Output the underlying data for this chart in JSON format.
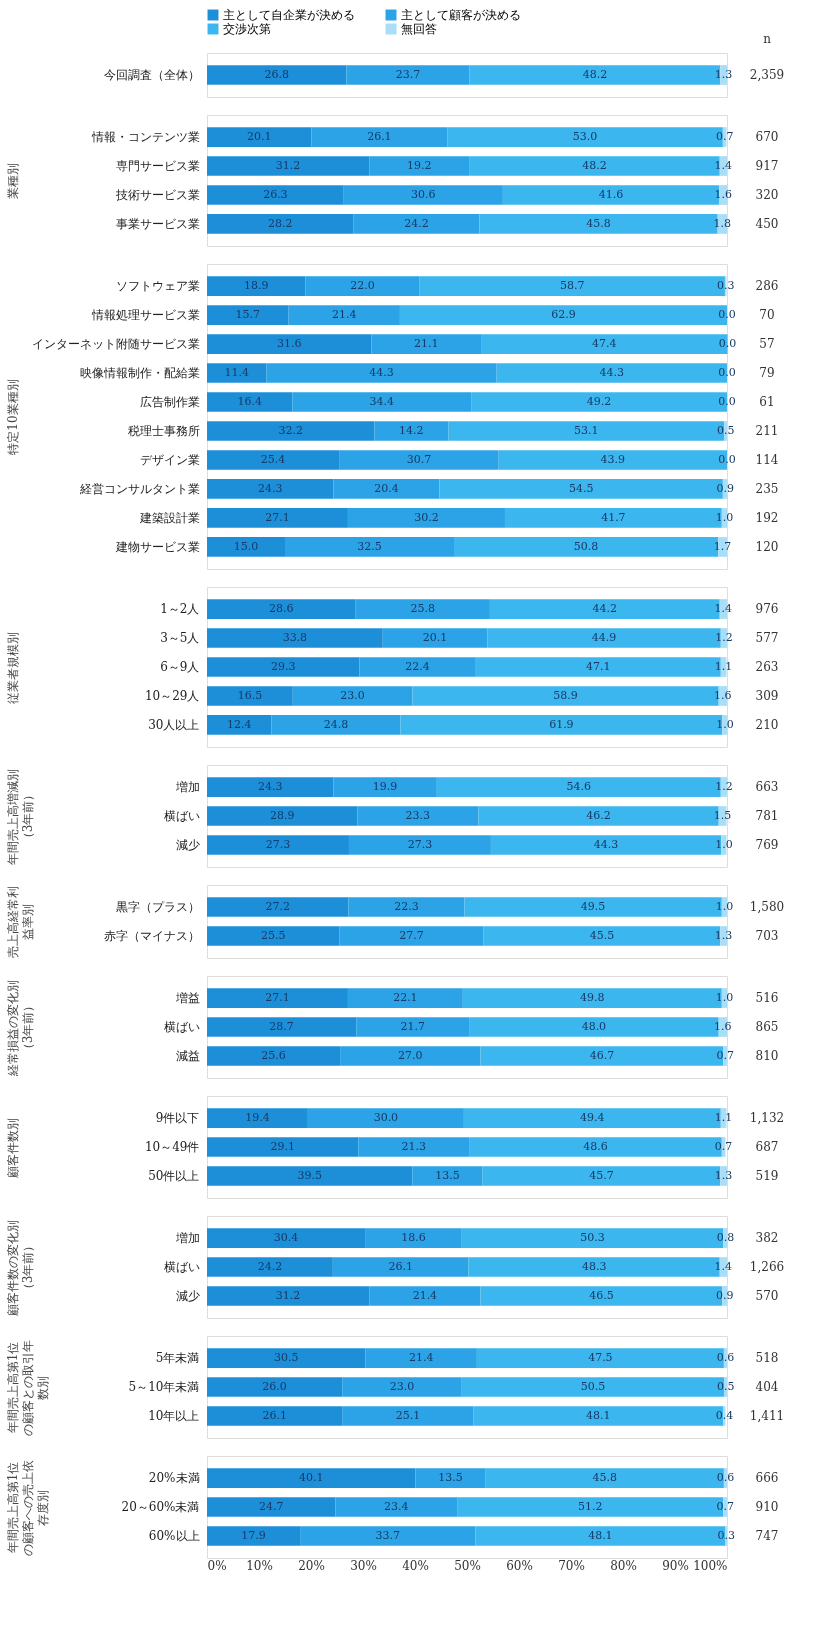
{
  "chart_data": [
    {
      "type": "bar",
      "orientation": "horizontal",
      "stacked": true,
      "legend": "top",
      "xlim": [
        0,
        100
      ],
      "tick_labels": "y",
      "categories": [
        "今回調査（全体）"
      ],
      "series": [
        {
          "name": "主として自企業が決める",
          "color": "#1d8fd9",
          "values": [
            26.8
          ],
          "value_labels": [
            "26.8"
          ]
        },
        {
          "name": "主として顧客が決める",
          "color": "#2ba3e6",
          "values": [
            23.7
          ],
          "value_labels": [
            "23.7"
          ]
        },
        {
          "name": "交渉次第",
          "color": "#3cb6ee",
          "values": [
            48.2
          ],
          "value_labels": [
            "48.2"
          ]
        },
        {
          "name": "無回答",
          "color": "#a8def7",
          "values": [
            1.3
          ],
          "value_labels": [
            "1.3"
          ]
        }
      ],
      "annotations": [
        "n",
        "2,359"
      ]
    },
    {
      "type": "bar",
      "orientation": "horizontal",
      "stacked": true,
      "ylabel": "業種別",
      "xlim": [
        0,
        100
      ],
      "tick_labels": "y",
      "categories": [
        "情報・コンテンツ業",
        "専門サービス業",
        "技術サービス業",
        "事業サービス業"
      ],
      "series": [
        {
          "color": "#1d8fd9",
          "values": [
            20.1,
            31.2,
            26.3,
            28.2
          ],
          "value_labels": [
            "20.1",
            "31.2",
            "26.3",
            "28.2"
          ]
        },
        {
          "color": "#2ba3e6",
          "values": [
            26.1,
            19.2,
            30.6,
            24.2
          ],
          "value_labels": [
            "26.1",
            "19.2",
            "30.6",
            "24.2"
          ]
        },
        {
          "color": "#3cb6ee",
          "values": [
            53.0,
            48.2,
            41.6,
            45.8
          ],
          "value_labels": [
            "53.0",
            "48.2",
            "41.6",
            "45.8"
          ]
        },
        {
          "color": "#a8def7",
          "values": [
            0.7,
            1.4,
            1.6,
            1.8
          ],
          "value_labels": [
            "0.7",
            "1.4",
            "1.6",
            "1.8"
          ]
        }
      ],
      "annotations": [
        "670",
        "917",
        "320",
        "450"
      ]
    },
    {
      "type": "bar",
      "orientation": "horizontal",
      "stacked": true,
      "ylabel": "特定10業種別",
      "xlim": [
        0,
        100
      ],
      "tick_labels": "y",
      "categories": [
        "ソフトウェア業",
        "情報処理サービス業",
        "インターネット附随サービス業",
        "映像情報制作・配給業",
        "広告制作業",
        "税理士事務所",
        "デザイン業",
        "経営コンサルタント業",
        "建築設計業",
        "建物サービス業"
      ],
      "series": [
        {
          "color": "#1d8fd9",
          "values": [
            18.9,
            15.7,
            31.6,
            11.4,
            16.4,
            32.2,
            25.4,
            24.3,
            27.1,
            15.0
          ],
          "value_labels": [
            "18.9",
            "15.7",
            "31.6",
            "11.4",
            "16.4",
            "32.2",
            "25.4",
            "24.3",
            "27.1",
            "15.0"
          ]
        },
        {
          "color": "#2ba3e6",
          "values": [
            22.0,
            21.4,
            21.1,
            44.3,
            34.4,
            14.2,
            30.7,
            20.4,
            30.2,
            32.5
          ],
          "value_labels": [
            "22.0",
            "21.4",
            "21.1",
            "44.3",
            "34.4",
            "14.2",
            "30.7",
            "20.4",
            "30.2",
            "32.5"
          ]
        },
        {
          "color": "#3cb6ee",
          "values": [
            58.7,
            62.9,
            47.4,
            44.3,
            49.2,
            53.1,
            43.9,
            54.5,
            41.7,
            50.8
          ],
          "value_labels": [
            "58.7",
            "62.9",
            "47.4",
            "44.3",
            "49.2",
            "53.1",
            "43.9",
            "54.5",
            "41.7",
            "50.8"
          ]
        },
        {
          "color": "#a8def7",
          "values": [
            0.3,
            0.0,
            0.0,
            0.0,
            0.0,
            0.5,
            0.0,
            0.9,
            1.0,
            1.7
          ],
          "value_labels": [
            "0.3",
            "0.0",
            "0.0",
            "0.0",
            "0.0",
            "0.5",
            "0.0",
            "0.9",
            "1.0",
            "1.7"
          ]
        }
      ],
      "annotations": [
        "286",
        "70",
        "57",
        "79",
        "61",
        "211",
        "114",
        "235",
        "192",
        "120"
      ]
    },
    {
      "type": "bar",
      "orientation": "horizontal",
      "stacked": true,
      "ylabel": "従業者規模別",
      "xlim": [
        0,
        100
      ],
      "tick_labels": "y",
      "categories": [
        "1～2人",
        "3～5人",
        "6～9人",
        "10～29人",
        "30人以上"
      ],
      "series": [
        {
          "color": "#1d8fd9",
          "values": [
            28.6,
            33.8,
            29.3,
            16.5,
            12.4
          ],
          "value_labels": [
            "28.6",
            "33.8",
            "29.3",
            "16.5",
            "12.4"
          ]
        },
        {
          "color": "#2ba3e6",
          "values": [
            25.8,
            20.1,
            22.4,
            23.0,
            24.8
          ],
          "value_labels": [
            "25.8",
            "20.1",
            "22.4",
            "23.0",
            "24.8"
          ]
        },
        {
          "color": "#3cb6ee",
          "values": [
            44.2,
            44.9,
            47.1,
            58.9,
            61.9
          ],
          "value_labels": [
            "44.2",
            "44.9",
            "47.1",
            "58.9",
            "61.9"
          ]
        },
        {
          "color": "#a8def7",
          "values": [
            1.4,
            1.2,
            1.1,
            1.6,
            1.0
          ],
          "value_labels": [
            "1.4",
            "1.2",
            "1.1",
            "1.6",
            "1.0"
          ]
        }
      ],
      "annotations": [
        "976",
        "577",
        "263",
        "309",
        "210"
      ]
    },
    {
      "type": "bar",
      "orientation": "horizontal",
      "stacked": true,
      "ylabel": "年間売上高増減別（3年前）",
      "xlim": [
        0,
        100
      ],
      "tick_labels": "y",
      "categories": [
        "増加",
        "横ばい",
        "減少"
      ],
      "series": [
        {
          "color": "#1d8fd9",
          "values": [
            24.3,
            28.9,
            27.3
          ],
          "value_labels": [
            "24.3",
            "28.9",
            "27.3"
          ]
        },
        {
          "color": "#2ba3e6",
          "values": [
            19.9,
            23.3,
            27.3
          ],
          "value_labels": [
            "19.9",
            "23.3",
            "27.3"
          ]
        },
        {
          "color": "#3cb6ee",
          "values": [
            54.6,
            46.2,
            44.3
          ],
          "value_labels": [
            "54.6",
            "46.2",
            "44.3"
          ]
        },
        {
          "color": "#a8def7",
          "values": [
            1.2,
            1.5,
            1.0
          ],
          "value_labels": [
            "1.2",
            "1.5",
            "1.0"
          ]
        }
      ],
      "annotations": [
        "663",
        "781",
        "769"
      ]
    },
    {
      "type": "bar",
      "orientation": "horizontal",
      "stacked": true,
      "ylabel": "売上高経常利益率別",
      "xlim": [
        0,
        100
      ],
      "tick_labels": "y",
      "categories": [
        "黒字（プラス）",
        "赤字（マイナス）"
      ],
      "series": [
        {
          "color": "#1d8fd9",
          "values": [
            27.2,
            25.5
          ],
          "value_labels": [
            "27.2",
            "25.5"
          ]
        },
        {
          "color": "#2ba3e6",
          "values": [
            22.3,
            27.7
          ],
          "value_labels": [
            "22.3",
            "27.7"
          ]
        },
        {
          "color": "#3cb6ee",
          "values": [
            49.5,
            45.5
          ],
          "value_labels": [
            "49.5",
            "45.5"
          ]
        },
        {
          "color": "#a8def7",
          "values": [
            1.0,
            1.3
          ],
          "value_labels": [
            "1.0",
            "1.3"
          ]
        }
      ],
      "annotations": [
        "1,580",
        "703"
      ]
    },
    {
      "type": "bar",
      "orientation": "horizontal",
      "stacked": true,
      "ylabel": "経常損益の変化別（3年前）",
      "xlim": [
        0,
        100
      ],
      "tick_labels": "y",
      "categories": [
        "増益",
        "横ばい",
        "減益"
      ],
      "series": [
        {
          "color": "#1d8fd9",
          "values": [
            27.1,
            28.7,
            25.6
          ],
          "value_labels": [
            "27.1",
            "28.7",
            "25.6"
          ]
        },
        {
          "color": "#2ba3e6",
          "values": [
            22.1,
            21.7,
            27.0
          ],
          "value_labels": [
            "22.1",
            "21.7",
            "27.0"
          ]
        },
        {
          "color": "#3cb6ee",
          "values": [
            49.8,
            48.0,
            46.7
          ],
          "value_labels": [
            "49.8",
            "48.0",
            "46.7"
          ]
        },
        {
          "color": "#a8def7",
          "values": [
            1.0,
            1.6,
            0.7
          ],
          "value_labels": [
            "1.0",
            "1.6",
            "0.7"
          ]
        }
      ],
      "annotations": [
        "516",
        "865",
        "810"
      ]
    },
    {
      "type": "bar",
      "orientation": "horizontal",
      "stacked": true,
      "ylabel": "顧客件数別",
      "xlim": [
        0,
        100
      ],
      "tick_labels": "y",
      "categories": [
        "9件以下",
        "10～49件",
        "50件以上"
      ],
      "series": [
        {
          "color": "#1d8fd9",
          "values": [
            19.4,
            29.1,
            39.5
          ],
          "value_labels": [
            "19.4",
            "29.1",
            "39.5"
          ]
        },
        {
          "color": "#2ba3e6",
          "values": [
            30.0,
            21.3,
            13.5
          ],
          "value_labels": [
            "30.0",
            "21.3",
            "13.5"
          ]
        },
        {
          "color": "#3cb6ee",
          "values": [
            49.4,
            48.6,
            45.7
          ],
          "value_labels": [
            "49.4",
            "48.6",
            "45.7"
          ]
        },
        {
          "color": "#a8def7",
          "values": [
            1.1,
            0.7,
            1.3
          ],
          "value_labels": [
            "1.1",
            "0.7",
            "1.3"
          ]
        }
      ],
      "annotations": [
        "1,132",
        "687",
        "519"
      ]
    },
    {
      "type": "bar",
      "orientation": "horizontal",
      "stacked": true,
      "ylabel": "顧客件数の変化別（3年前）",
      "xlim": [
        0,
        100
      ],
      "tick_labels": "y",
      "categories": [
        "増加",
        "横ばい",
        "減少"
      ],
      "series": [
        {
          "color": "#1d8fd9",
          "values": [
            30.4,
            24.2,
            31.2
          ],
          "value_labels": [
            "30.4",
            "24.2",
            "31.2"
          ]
        },
        {
          "color": "#2ba3e6",
          "values": [
            18.6,
            26.1,
            21.4
          ],
          "value_labels": [
            "18.6",
            "26.1",
            "21.4"
          ]
        },
        {
          "color": "#3cb6ee",
          "values": [
            50.3,
            48.3,
            46.5
          ],
          "value_labels": [
            "50.3",
            "48.3",
            "46.5"
          ]
        },
        {
          "color": "#a8def7",
          "values": [
            0.8,
            1.4,
            0.9
          ],
          "value_labels": [
            "0.8",
            "1.4",
            "0.9"
          ]
        }
      ],
      "annotations": [
        "382",
        "1,266",
        "570"
      ]
    },
    {
      "type": "bar",
      "orientation": "horizontal",
      "stacked": true,
      "ylabel": "年間売上高第1位の顧客との取引年数別",
      "xlim": [
        0,
        100
      ],
      "tick_labels": "y",
      "categories": [
        "5年未満",
        "5～10年未満",
        "10年以上"
      ],
      "series": [
        {
          "color": "#1d8fd9",
          "values": [
            30.5,
            26.0,
            26.1
          ],
          "value_labels": [
            "30.5",
            "26.0",
            "26.1"
          ]
        },
        {
          "color": "#2ba3e6",
          "values": [
            21.4,
            23.0,
            25.1
          ],
          "value_labels": [
            "21.4",
            "23.0",
            "25.1"
          ]
        },
        {
          "color": "#3cb6ee",
          "values": [
            47.5,
            50.5,
            48.1
          ],
          "value_labels": [
            "47.5",
            "50.5",
            "48.1"
          ]
        },
        {
          "color": "#a8def7",
          "values": [
            0.6,
            0.5,
            0.4
          ],
          "value_labels": [
            "0.6",
            "0.5",
            "0.4"
          ]
        }
      ],
      "annotations": [
        "518",
        "404",
        "1,411"
      ]
    },
    {
      "type": "bar",
      "orientation": "horizontal",
      "stacked": true,
      "ylabel": "年間売上高第1位の顧客への売上依存度別",
      "xlim": [
        0,
        100
      ],
      "xticks": [
        {
          "value": 0,
          "label": "0%"
        },
        {
          "value": 10,
          "label": "10%"
        },
        {
          "value": 20,
          "label": "20%"
        },
        {
          "value": 30,
          "label": "30%"
        },
        {
          "value": 40,
          "label": "40%"
        },
        {
          "value": 50,
          "label": "50%"
        },
        {
          "value": 60,
          "label": "60%"
        },
        {
          "value": 70,
          "label": "70%"
        },
        {
          "value": 80,
          "label": "80%"
        },
        {
          "value": 90,
          "label": "90%"
        },
        {
          "value": 100,
          "label": "100%"
        }
      ],
      "categories": [
        "20%未満",
        "20～60%未満",
        "60%以上"
      ],
      "series": [
        {
          "color": "#1d8fd9",
          "values": [
            40.1,
            24.7,
            17.9
          ],
          "value_labels": [
            "40.1",
            "24.7",
            "17.9"
          ]
        },
        {
          "color": "#2ba3e6",
          "values": [
            13.5,
            23.4,
            33.7
          ],
          "value_labels": [
            "13.5",
            "23.4",
            "33.7"
          ]
        },
        {
          "color": "#3cb6ee",
          "values": [
            45.8,
            51.2,
            48.1
          ],
          "value_labels": [
            "45.8",
            "51.2",
            "48.1"
          ]
        },
        {
          "color": "#a8def7",
          "values": [
            0.6,
            0.7,
            0.3
          ],
          "value_labels": [
            "0.6",
            "0.7",
            "0.3"
          ]
        }
      ],
      "annotations": [
        "666",
        "910",
        "747"
      ]
    }
  ]
}
